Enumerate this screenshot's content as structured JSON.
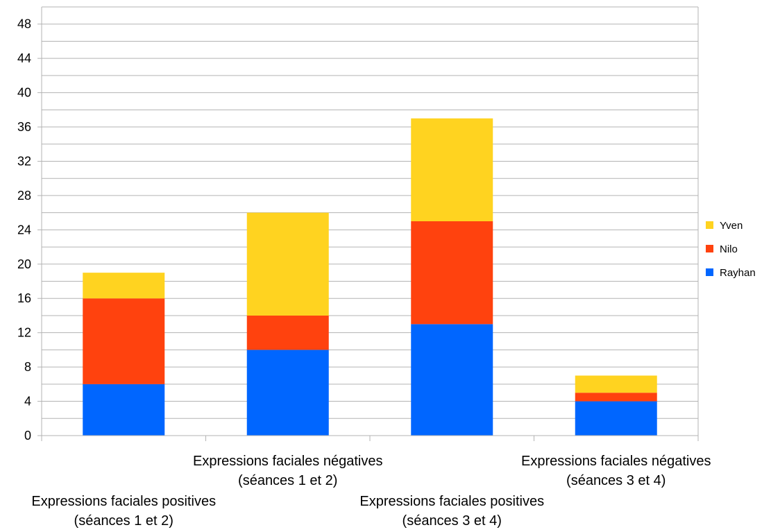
{
  "chart_data": {
    "type": "bar",
    "stacked": true,
    "categories": [
      [
        "Expressions faciales positives",
        "(séances 1 et 2)"
      ],
      [
        "Expressions faciales négatives",
        "(séances 1 et 2)"
      ],
      [
        "Expressions faciales positives",
        "(séances 3 et 4)"
      ],
      [
        "Expressions faciales négatives",
        "(séances 3 et 4)"
      ]
    ],
    "series": [
      {
        "name": "Rayhan",
        "color": "#0066ff",
        "values": [
          6,
          10,
          13,
          4
        ]
      },
      {
        "name": "Nilo",
        "color": "#ff420e",
        "values": [
          10,
          4,
          12,
          1
        ]
      },
      {
        "name": "Yven",
        "color": "#ffd320",
        "values": [
          3,
          12,
          12,
          2
        ]
      }
    ],
    "ylim": [
      0,
      50
    ],
    "yticks": [
      0,
      4,
      8,
      12,
      16,
      20,
      24,
      28,
      32,
      36,
      40,
      44,
      48
    ],
    "grid": true,
    "legend": "right"
  }
}
